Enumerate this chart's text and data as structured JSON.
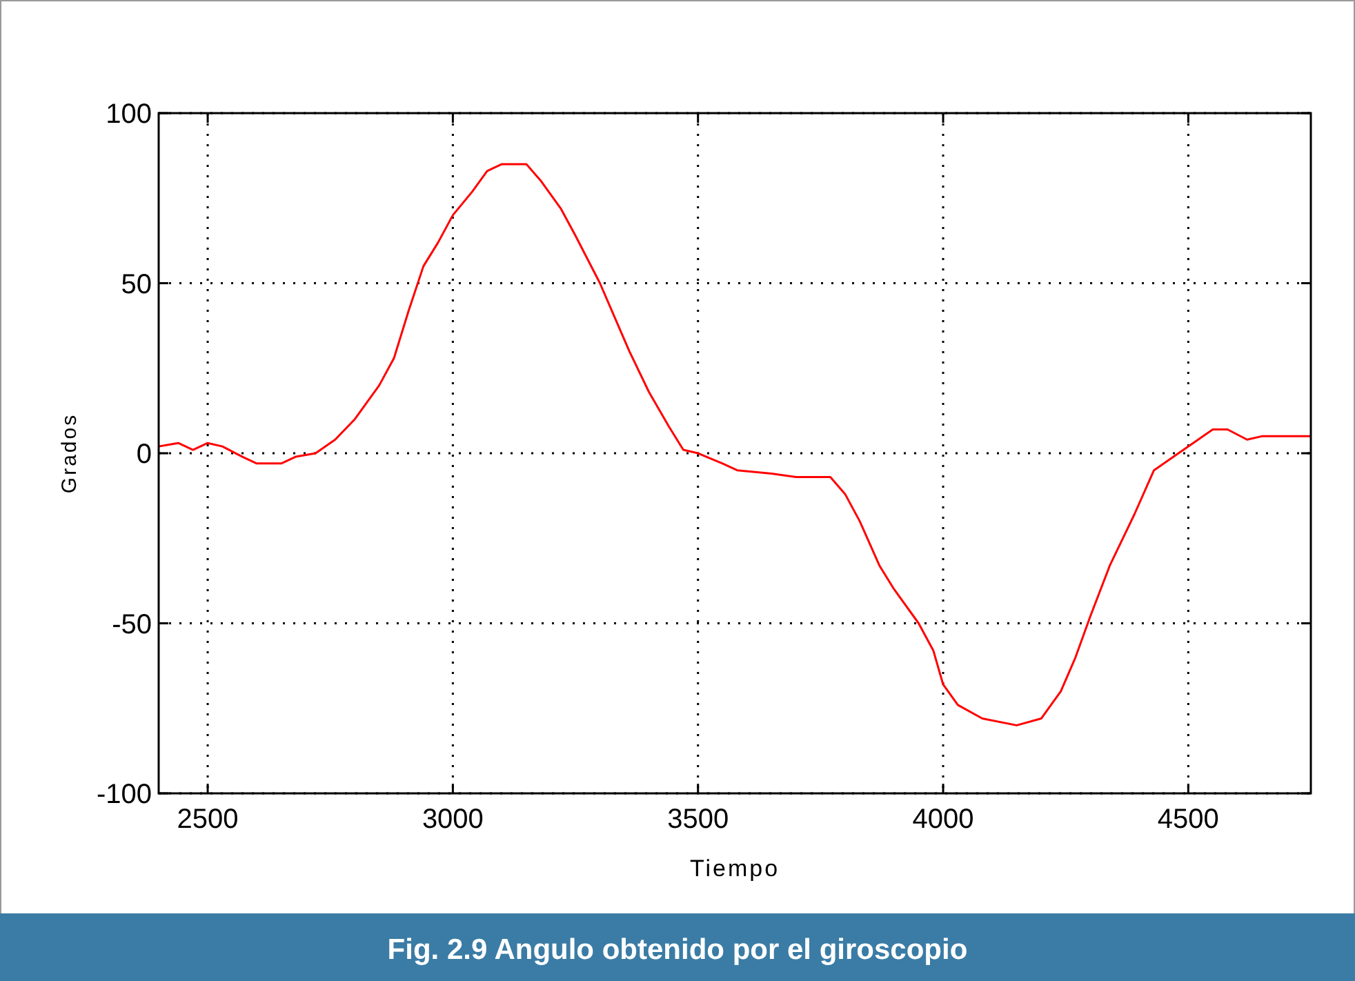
{
  "chart_data": {
    "type": "line",
    "title": "Fig. 2.9 Angulo obtenido por el giroscopio",
    "xlabel": "Tiempo",
    "ylabel": "Grados",
    "x": [
      2400,
      2440,
      2470,
      2500,
      2530,
      2570,
      2600,
      2650,
      2680,
      2720,
      2760,
      2800,
      2850,
      2880,
      2910,
      2940,
      2970,
      3000,
      3040,
      3070,
      3100,
      3150,
      3180,
      3220,
      3250,
      3300,
      3330,
      3360,
      3400,
      3440,
      3470,
      3500,
      3550,
      3580,
      3650,
      3700,
      3750,
      3770,
      3800,
      3830,
      3870,
      3900,
      3950,
      3980,
      4000,
      4030,
      4080,
      4150,
      4200,
      4240,
      4270,
      4300,
      4340,
      4390,
      4430,
      4480,
      4510,
      4550,
      4580,
      4620,
      4650,
      4700,
      4750
    ],
    "series": [
      {
        "color": "#ff0000",
        "values": [
          2,
          3,
          1,
          3,
          2,
          -1,
          -3,
          -3,
          -1,
          0,
          4,
          10,
          20,
          28,
          42,
          55,
          62,
          70,
          77,
          83,
          85,
          85,
          80,
          72,
          64,
          50,
          40,
          30,
          18,
          8,
          1,
          0,
          -3,
          -5,
          -6,
          -7,
          -7,
          -7,
          -12,
          -20,
          -33,
          -40,
          -50,
          -58,
          -68,
          -74,
          -78,
          -80,
          -78,
          -70,
          -60,
          -48,
          -33,
          -18,
          -5,
          0,
          3,
          7,
          7,
          4,
          5,
          5,
          5
        ]
      }
    ],
    "xlim": [
      2400,
      4750
    ],
    "xticks": [
      2500,
      3000,
      3500,
      4000,
      4500
    ],
    "ylim": [
      -100,
      100
    ],
    "yticks": [
      -100,
      -50,
      0,
      50,
      100
    ],
    "grid": true,
    "line_style": "solid",
    "marker": "none"
  }
}
